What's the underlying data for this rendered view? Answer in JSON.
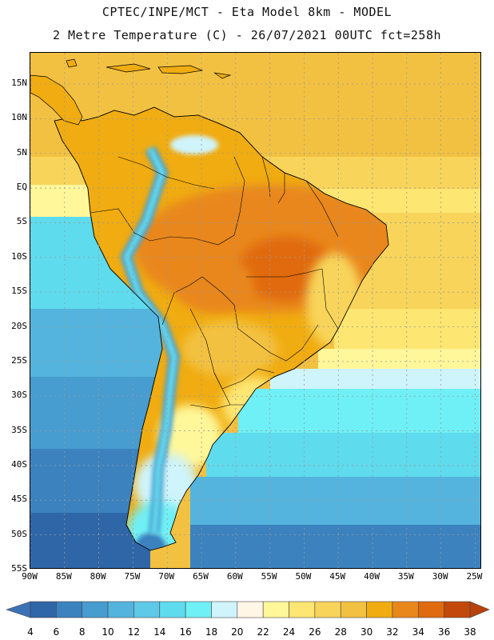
{
  "header": {
    "line1": "CPTEC/INPE/MCT -  Eta Model 8km - MODEL",
    "line2": "2 Metre Temperature (C) - 26/07/2021 00UTC fct=258h"
  },
  "map": {
    "lat_labels": [
      "15N",
      "10N",
      "5N",
      "EQ",
      "5S",
      "10S",
      "15S",
      "20S",
      "25S",
      "30S",
      "35S",
      "40S",
      "45S",
      "50S",
      "55S"
    ],
    "lon_labels": [
      "90W",
      "85W",
      "80W",
      "75W",
      "70W",
      "65W",
      "60W",
      "55W",
      "50W",
      "45W",
      "40W",
      "35W",
      "30W",
      "25W"
    ],
    "lat_range": [
      -55,
      19.5
    ],
    "lon_range": [
      -90,
      -24
    ],
    "lat_ticks": [
      15,
      10,
      5,
      0,
      -5,
      -10,
      -15,
      -20,
      -25,
      -30,
      -35,
      -40,
      -45,
      -50,
      -55
    ],
    "lon_ticks": [
      -90,
      -85,
      -80,
      -75,
      -70,
      -65,
      -60,
      -55,
      -50,
      -45,
      -40,
      -35,
      -30,
      -25
    ]
  },
  "colorbar": {
    "labels": [
      "4",
      "6",
      "8",
      "10",
      "12",
      "14",
      "16",
      "18",
      "20",
      "22",
      "24",
      "26",
      "28",
      "30",
      "32",
      "34",
      "36",
      "38"
    ],
    "colors": [
      "#2f66a8",
      "#3b82bf",
      "#479cd0",
      "#54b4de",
      "#5fc9e8",
      "#5fdbee",
      "#6ff0f6",
      "#cff4fb",
      "#fff6e6",
      "#fff79a",
      "#fde672",
      "#f8d45a",
      "#f3c141",
      "#f0ac10",
      "#e9871c",
      "#e06a10",
      "#c2490b"
    ],
    "low_color": "#3a72b5",
    "high_color": "#b7420a"
  }
}
